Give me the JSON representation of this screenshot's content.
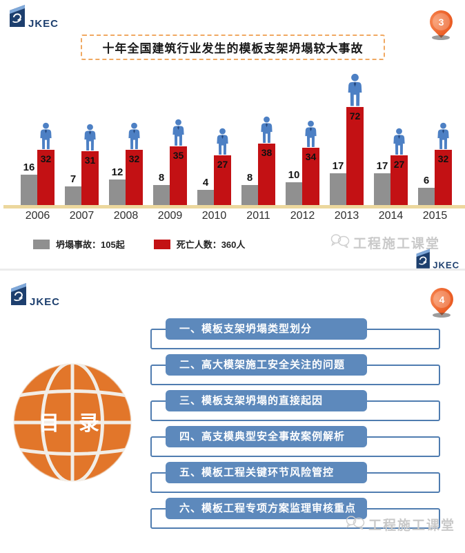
{
  "brand": {
    "logo_text": "JKEC"
  },
  "watermark": {
    "text": "工程施工课堂"
  },
  "slide1": {
    "page_number": "3",
    "title": "十年全国建筑行业发生的模板支架坍塌较大事故",
    "legend": [
      {
        "label": "坍塌事故：105起"
      },
      {
        "label": "死亡人数：360人"
      }
    ]
  },
  "chart_data": {
    "type": "bar",
    "title": "十年全国建筑行业发生的模板支架坍塌较大事故",
    "categories": [
      "2006",
      "2007",
      "2008",
      "2009",
      "2010",
      "2011",
      "2012",
      "2013",
      "2014",
      "2015"
    ],
    "series": [
      {
        "name": "坍塌事故",
        "unit": "起",
        "total": 105,
        "color": "#909090",
        "values": [
          16,
          7,
          12,
          8,
          4,
          8,
          10,
          17,
          17,
          6
        ]
      },
      {
        "name": "死亡人数",
        "unit": "人",
        "total": 360,
        "color": "#c31114",
        "values": [
          32,
          31,
          32,
          35,
          27,
          38,
          34,
          72,
          27,
          32
        ]
      }
    ],
    "xlabel": "",
    "ylabel": "",
    "grid": false,
    "value_labels": true,
    "legend_position": "bottom",
    "marker_icon": "person-icon"
  },
  "slide2": {
    "page_number": "4",
    "toc_title": "目 录",
    "items": [
      {
        "label": "一、模板支架坍塌类型划分"
      },
      {
        "label": "二、高大模架施工安全关注的问题"
      },
      {
        "label": "三、模板支架坍塌的直接起因"
      },
      {
        "label": "四、高支模典型安全事故案例解析"
      },
      {
        "label": "五、模板工程关键环节风险管控"
      },
      {
        "label": "六、模板工程专项方案监理审核重点"
      }
    ]
  },
  "icons": {
    "page_marker": "location-pin",
    "watermark_icon": "chat-bubbles",
    "toc_graphic": "globe",
    "chart_marker": "person"
  },
  "colors": {
    "bar_gray": "#909090",
    "bar_red": "#c31114",
    "toc_blue": "#5d89bc",
    "toc_border": "#4f7cb0",
    "globe_orange": "#e2762a",
    "pin_orange": "#ea5b22",
    "axis_tan": "#ecd79d",
    "title_border": "#f0a861",
    "person_blue": "#4d80c4",
    "watermark_gray": "#c9c9c9",
    "logo_navy": "#1d3f6e"
  }
}
